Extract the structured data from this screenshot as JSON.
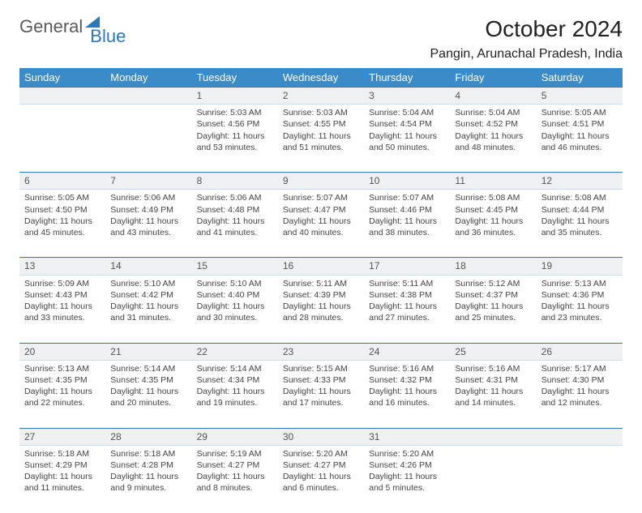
{
  "logo": {
    "part1": "General",
    "part2": "Blue"
  },
  "title": "October 2024",
  "location": "Pangin, Arunachal Pradesh, India",
  "colors": {
    "header_bg": "#3b8bc8",
    "header_text": "#ffffff",
    "row_divider": "#2f78b7",
    "daynum_bg": "#eef0f1",
    "text": "#444444"
  },
  "weekdays": [
    "Sunday",
    "Monday",
    "Tuesday",
    "Wednesday",
    "Thursday",
    "Friday",
    "Saturday"
  ],
  "weeks": [
    [
      null,
      null,
      {
        "n": "1",
        "sunrise": "5:03 AM",
        "sunset": "4:56 PM",
        "daylight": "11 hours and 53 minutes."
      },
      {
        "n": "2",
        "sunrise": "5:03 AM",
        "sunset": "4:55 PM",
        "daylight": "11 hours and 51 minutes."
      },
      {
        "n": "3",
        "sunrise": "5:04 AM",
        "sunset": "4:54 PM",
        "daylight": "11 hours and 50 minutes."
      },
      {
        "n": "4",
        "sunrise": "5:04 AM",
        "sunset": "4:52 PM",
        "daylight": "11 hours and 48 minutes."
      },
      {
        "n": "5",
        "sunrise": "5:05 AM",
        "sunset": "4:51 PM",
        "daylight": "11 hours and 46 minutes."
      }
    ],
    [
      {
        "n": "6",
        "sunrise": "5:05 AM",
        "sunset": "4:50 PM",
        "daylight": "11 hours and 45 minutes."
      },
      {
        "n": "7",
        "sunrise": "5:06 AM",
        "sunset": "4:49 PM",
        "daylight": "11 hours and 43 minutes."
      },
      {
        "n": "8",
        "sunrise": "5:06 AM",
        "sunset": "4:48 PM",
        "daylight": "11 hours and 41 minutes."
      },
      {
        "n": "9",
        "sunrise": "5:07 AM",
        "sunset": "4:47 PM",
        "daylight": "11 hours and 40 minutes."
      },
      {
        "n": "10",
        "sunrise": "5:07 AM",
        "sunset": "4:46 PM",
        "daylight": "11 hours and 38 minutes."
      },
      {
        "n": "11",
        "sunrise": "5:08 AM",
        "sunset": "4:45 PM",
        "daylight": "11 hours and 36 minutes."
      },
      {
        "n": "12",
        "sunrise": "5:08 AM",
        "sunset": "4:44 PM",
        "daylight": "11 hours and 35 minutes."
      }
    ],
    [
      {
        "n": "13",
        "sunrise": "5:09 AM",
        "sunset": "4:43 PM",
        "daylight": "11 hours and 33 minutes."
      },
      {
        "n": "14",
        "sunrise": "5:10 AM",
        "sunset": "4:42 PM",
        "daylight": "11 hours and 31 minutes."
      },
      {
        "n": "15",
        "sunrise": "5:10 AM",
        "sunset": "4:40 PM",
        "daylight": "11 hours and 30 minutes."
      },
      {
        "n": "16",
        "sunrise": "5:11 AM",
        "sunset": "4:39 PM",
        "daylight": "11 hours and 28 minutes."
      },
      {
        "n": "17",
        "sunrise": "5:11 AM",
        "sunset": "4:38 PM",
        "daylight": "11 hours and 27 minutes."
      },
      {
        "n": "18",
        "sunrise": "5:12 AM",
        "sunset": "4:37 PM",
        "daylight": "11 hours and 25 minutes."
      },
      {
        "n": "19",
        "sunrise": "5:13 AM",
        "sunset": "4:36 PM",
        "daylight": "11 hours and 23 minutes."
      }
    ],
    [
      {
        "n": "20",
        "sunrise": "5:13 AM",
        "sunset": "4:35 PM",
        "daylight": "11 hours and 22 minutes."
      },
      {
        "n": "21",
        "sunrise": "5:14 AM",
        "sunset": "4:35 PM",
        "daylight": "11 hours and 20 minutes."
      },
      {
        "n": "22",
        "sunrise": "5:14 AM",
        "sunset": "4:34 PM",
        "daylight": "11 hours and 19 minutes."
      },
      {
        "n": "23",
        "sunrise": "5:15 AM",
        "sunset": "4:33 PM",
        "daylight": "11 hours and 17 minutes."
      },
      {
        "n": "24",
        "sunrise": "5:16 AM",
        "sunset": "4:32 PM",
        "daylight": "11 hours and 16 minutes."
      },
      {
        "n": "25",
        "sunrise": "5:16 AM",
        "sunset": "4:31 PM",
        "daylight": "11 hours and 14 minutes."
      },
      {
        "n": "26",
        "sunrise": "5:17 AM",
        "sunset": "4:30 PM",
        "daylight": "11 hours and 12 minutes."
      }
    ],
    [
      {
        "n": "27",
        "sunrise": "5:18 AM",
        "sunset": "4:29 PM",
        "daylight": "11 hours and 11 minutes."
      },
      {
        "n": "28",
        "sunrise": "5:18 AM",
        "sunset": "4:28 PM",
        "daylight": "11 hours and 9 minutes."
      },
      {
        "n": "29",
        "sunrise": "5:19 AM",
        "sunset": "4:27 PM",
        "daylight": "11 hours and 8 minutes."
      },
      {
        "n": "30",
        "sunrise": "5:20 AM",
        "sunset": "4:27 PM",
        "daylight": "11 hours and 6 minutes."
      },
      {
        "n": "31",
        "sunrise": "5:20 AM",
        "sunset": "4:26 PM",
        "daylight": "11 hours and 5 minutes."
      },
      null,
      null
    ]
  ],
  "labels": {
    "sunrise": "Sunrise:",
    "sunset": "Sunset:",
    "daylight": "Daylight:"
  }
}
